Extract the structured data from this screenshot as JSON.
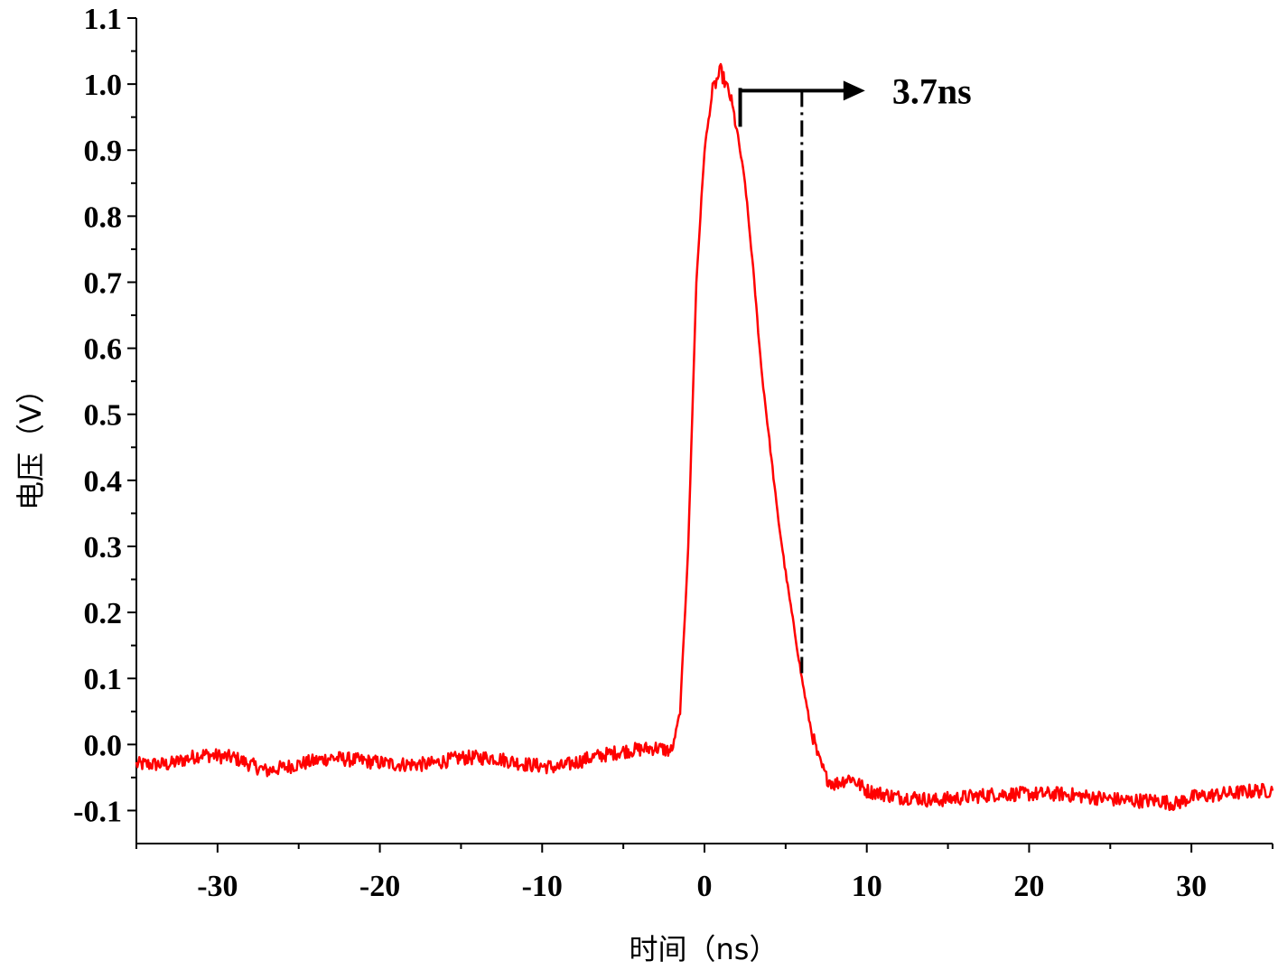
{
  "chart_data": {
    "type": "line",
    "xlabel": "时间（ns）",
    "ylabel": "电压（V）",
    "xlim": [
      -35,
      35
    ],
    "ylim": [
      -0.15,
      1.1
    ],
    "x_ticks": [
      -30,
      -20,
      -10,
      0,
      10,
      20,
      30
    ],
    "x_tick_labels": [
      "-30",
      "-20",
      "-10",
      "0",
      "10",
      "20",
      "30"
    ],
    "y_ticks": [
      -0.1,
      0.0,
      0.1,
      0.2,
      0.3,
      0.4,
      0.5,
      0.6,
      0.7,
      0.8,
      0.9,
      1.0,
      1.1
    ],
    "y_tick_labels": [
      "-0.1",
      "0.0",
      "0.1",
      "0.2",
      "0.3",
      "0.4",
      "0.5",
      "0.6",
      "0.7",
      "0.8",
      "0.9",
      "1.0",
      "1.1"
    ],
    "x_minor_step": 5,
    "y_minor_step": 0.05,
    "grid": false,
    "series": [
      {
        "color": "#ff0000",
        "x": [
          -35,
          -33,
          -31,
          -29,
          -27,
          -25,
          -23,
          -21,
          -19,
          -17,
          -15,
          -13,
          -11,
          -9,
          -7,
          -5,
          -3,
          -2,
          -1.5,
          -1,
          -0.5,
          0,
          0.5,
          1,
          1.3,
          1.6,
          2,
          2.5,
          3,
          3.5,
          4,
          4.5,
          5,
          5.5,
          6,
          6.5,
          7,
          7.5,
          8,
          9,
          10,
          11,
          12,
          13,
          14,
          16,
          18,
          20,
          22,
          24,
          26,
          28,
          29,
          30,
          32,
          34,
          35
        ],
        "y": [
          -0.03,
          -0.03,
          -0.015,
          -0.02,
          -0.04,
          -0.03,
          -0.02,
          -0.025,
          -0.03,
          -0.03,
          -0.02,
          -0.02,
          -0.03,
          -0.035,
          -0.02,
          -0.01,
          -0.005,
          -0.01,
          0.05,
          0.3,
          0.7,
          0.9,
          0.99,
          1.02,
          1.0,
          0.98,
          0.93,
          0.85,
          0.72,
          0.57,
          0.46,
          0.35,
          0.26,
          0.18,
          0.1,
          0.03,
          -0.02,
          -0.05,
          -0.06,
          -0.05,
          -0.07,
          -0.075,
          -0.08,
          -0.08,
          -0.085,
          -0.08,
          -0.075,
          -0.075,
          -0.075,
          -0.08,
          -0.085,
          -0.085,
          -0.09,
          -0.08,
          -0.075,
          -0.07,
          -0.07
        ]
      }
    ],
    "annotations": [
      {
        "text": "3.7ns",
        "from_x": 2.2,
        "to_x": 6.0,
        "arrow_y": 0.99,
        "dashdot_x": 6.0,
        "dashdot_y_bottom": 0.1
      }
    ]
  }
}
